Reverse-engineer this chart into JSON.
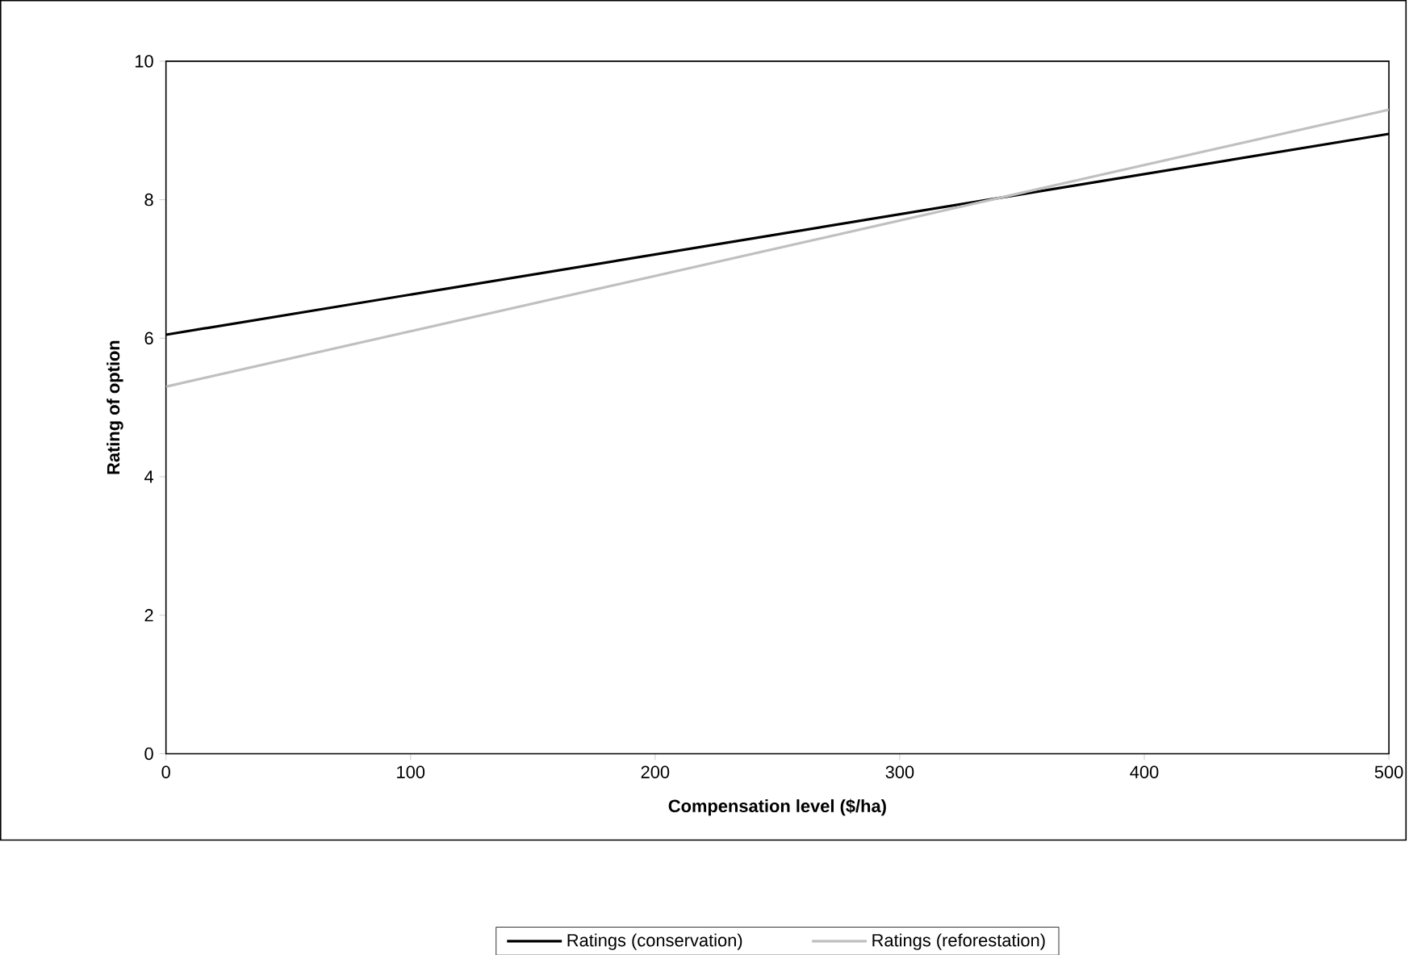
{
  "chart_data": {
    "type": "line",
    "xlabel": "Compensation level ($/ha)",
    "ylabel": "Rating of option",
    "x": [
      0,
      500
    ],
    "series": [
      {
        "name": "Ratings (conservation)",
        "color": "#000000",
        "values": [
          6.05,
          8.95
        ]
      },
      {
        "name": "Ratings (reforestation)",
        "color": "#c0c0c0",
        "values": [
          5.3,
          9.3
        ]
      }
    ],
    "xlim": [
      0,
      500
    ],
    "ylim": [
      0,
      10
    ],
    "xticks": [
      0,
      100,
      200,
      300,
      400,
      500
    ],
    "yticks": [
      0,
      2,
      4,
      6,
      8,
      10
    ],
    "grid": false,
    "legend": "bottom",
    "marker": "none",
    "line_style": "solid"
  }
}
